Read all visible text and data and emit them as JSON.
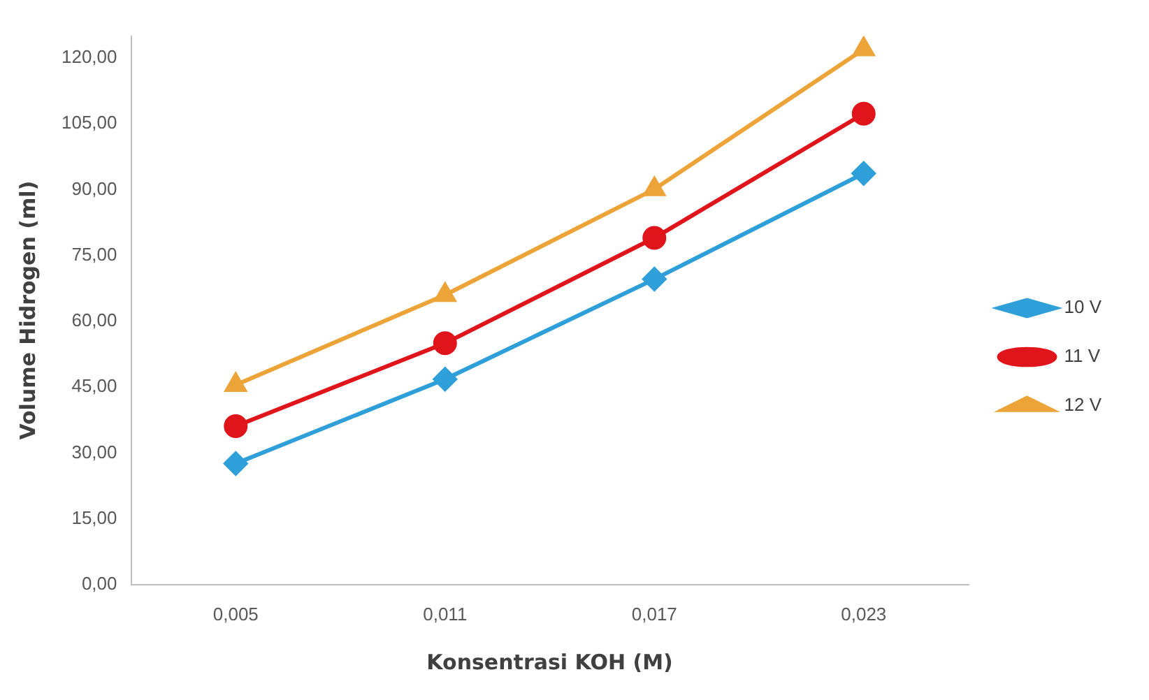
{
  "chart_data": {
    "type": "line",
    "xlabel": "Konsentrasi KOH (M)",
    "ylabel": "Volume Hidrogen (ml)",
    "categories": [
      "0,005",
      "0,011",
      "0,017",
      "0,023"
    ],
    "series": [
      {
        "name": "10 V",
        "color": "#2e9fd8",
        "marker": "diamond",
        "values": [
          27.6,
          46.8,
          69.6,
          93.7
        ]
      },
      {
        "name": "11 V",
        "color": "#e0141b",
        "marker": "circle",
        "values": [
          36.1,
          55.0,
          79.0,
          107.3
        ]
      },
      {
        "name": "12 V",
        "color": "#eca338",
        "marker": "triangle",
        "values": [
          45.5,
          66.0,
          90.1,
          122.0
        ]
      }
    ],
    "ylim": [
      0,
      125
    ],
    "yticks": [
      {
        "value": 0,
        "label": "0,00"
      },
      {
        "value": 15,
        "label": "15,00"
      },
      {
        "value": 30,
        "label": "30,00"
      },
      {
        "value": 45,
        "label": "45,00"
      },
      {
        "value": 60,
        "label": "60,00"
      },
      {
        "value": 75,
        "label": "75,00"
      },
      {
        "value": 90,
        "label": "90,00"
      },
      {
        "value": 105,
        "label": "105,00"
      },
      {
        "value": 120,
        "label": "120,00"
      }
    ],
    "grid": false,
    "legend": "right",
    "line_style": "solid"
  }
}
